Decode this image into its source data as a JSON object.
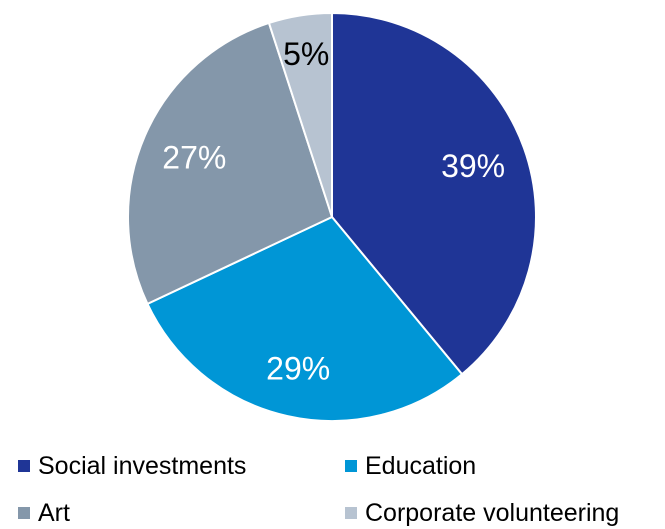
{
  "chart_data": {
    "type": "pie",
    "title": "",
    "slices": [
      {
        "name": "Social investments",
        "value": 39,
        "label": "39%",
        "color": "#1f3596",
        "label_color": "#ffffff"
      },
      {
        "name": "Education",
        "value": 29,
        "label": "29%",
        "color": "#0096d6",
        "label_color": "#ffffff"
      },
      {
        "name": "Art",
        "value": 27,
        "label": "27%",
        "color": "#8497aa",
        "label_color": "#ffffff"
      },
      {
        "name": "Corporate volunteering",
        "value": 5,
        "label": "5%",
        "color": "#b7c3d1",
        "label_color": "#000000"
      }
    ],
    "legend": {
      "placement": "bottom",
      "columns": 2
    }
  }
}
